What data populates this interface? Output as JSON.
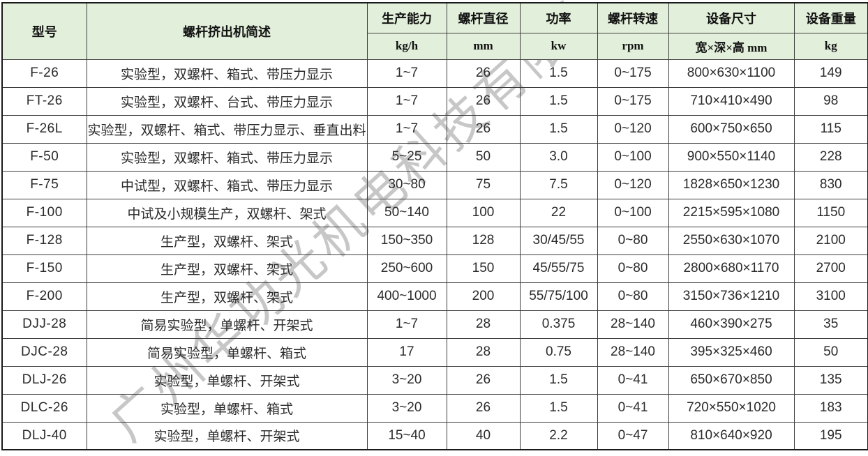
{
  "watermark": {
    "text": "广州华功光机电科技有限公司"
  },
  "colors": {
    "header_bg": "#e2efda",
    "border": "#3d3d3d",
    "outer_border": "#1a1a1a",
    "text": "#2b2b2b",
    "watermark": "#c7c7c7"
  },
  "table": {
    "header": {
      "model": "型号",
      "description": "螺杆挤出机简述",
      "groups": [
        {
          "top": "生产能力",
          "bottom": "kg/h"
        },
        {
          "top": "螺杆直径",
          "bottom": "mm"
        },
        {
          "top": "功率",
          "bottom": "kw"
        },
        {
          "top": "螺杆转速",
          "bottom": "rpm"
        },
        {
          "top": "设备尺寸",
          "bottom": "宽×深×高 mm"
        },
        {
          "top": "设备重量",
          "bottom": "kg"
        }
      ]
    },
    "rows": [
      {
        "model": "F-26",
        "desc": "实验型，双螺杆、箱式、带压力显示",
        "capacity": "1~7",
        "diameter": "26",
        "power": "1.5",
        "speed": "0~175",
        "size": "800×630×1100",
        "weight": "149"
      },
      {
        "model": "FT-26",
        "desc": "实验型，双螺杆、台式、带压力显示",
        "capacity": "1~7",
        "diameter": "26",
        "power": "1.5",
        "speed": "0~175",
        "size": "710×410×490",
        "weight": "98"
      },
      {
        "model": "F-26L",
        "desc": "实验型，双螺杆、箱式、带压力显示、垂直出料",
        "capacity": "1~7",
        "diameter": "26",
        "power": "1.5",
        "speed": "0~120",
        "size": "600×750×650",
        "weight": "115"
      },
      {
        "model": "F-50",
        "desc": "实验型，双螺杆、箱式、带压力显示",
        "capacity": "5~25",
        "diameter": "50",
        "power": "3.0",
        "speed": "0~100",
        "size": "900×550×1140",
        "weight": "228"
      },
      {
        "model": "F-75",
        "desc": "中试型，双螺杆、箱式、带压力显示",
        "capacity": "30~80",
        "diameter": "75",
        "power": "7.5",
        "speed": "0~120",
        "size": "1828×650×1230",
        "weight": "830"
      },
      {
        "model": "F-100",
        "desc": "中试及小规模生产，双螺杆、架式",
        "capacity": "50~140",
        "diameter": "100",
        "power": "22",
        "speed": "0~100",
        "size": "2215×595×1080",
        "weight": "1150"
      },
      {
        "model": "F-128",
        "desc": "生产型，双螺杆、架式",
        "capacity": "150~350",
        "diameter": "128",
        "power": "30/45/55",
        "speed": "0~80",
        "size": "2550×630×1070",
        "weight": "2100"
      },
      {
        "model": "F-150",
        "desc": "生产型，双螺杆、架式",
        "capacity": "250~600",
        "diameter": "150",
        "power": "45/55/75",
        "speed": "0~80",
        "size": "2800×680×1170",
        "weight": "2700"
      },
      {
        "model": "F-200",
        "desc": "生产型，双螺杆、架式",
        "capacity": "400~1000",
        "diameter": "200",
        "power": "55/75/100",
        "speed": "0~80",
        "size": "3150×736×1210",
        "weight": "3100"
      },
      {
        "model": "DJJ-28",
        "desc": "简易实验型，单螺杆、开架式",
        "capacity": "1~7",
        "diameter": "28",
        "power": "0.375",
        "speed": "28~140",
        "size": "460×390×275",
        "weight": "35"
      },
      {
        "model": "DJC-28",
        "desc": "简易实验型，单螺杆、箱式",
        "capacity": "17",
        "diameter": "28",
        "power": "0.75",
        "speed": "28~140",
        "size": "395×325×460",
        "weight": "50"
      },
      {
        "model": "DLJ-26",
        "desc": "实验型，单螺杆、开架式",
        "capacity": "3~20",
        "diameter": "26",
        "power": "1.5",
        "speed": "0~41",
        "size": "650×670×850",
        "weight": "135"
      },
      {
        "model": "DLC-26",
        "desc": "实验型，单螺杆、箱式",
        "capacity": "3~20",
        "diameter": "26",
        "power": "1.5",
        "speed": "0~41",
        "size": "720×550×1020",
        "weight": "183"
      },
      {
        "model": "DLJ-40",
        "desc": "实验型，单螺杆、开架式",
        "capacity": "15~40",
        "diameter": "40",
        "power": "2.2",
        "speed": "0~47",
        "size": "810×640×920",
        "weight": "195"
      }
    ]
  }
}
